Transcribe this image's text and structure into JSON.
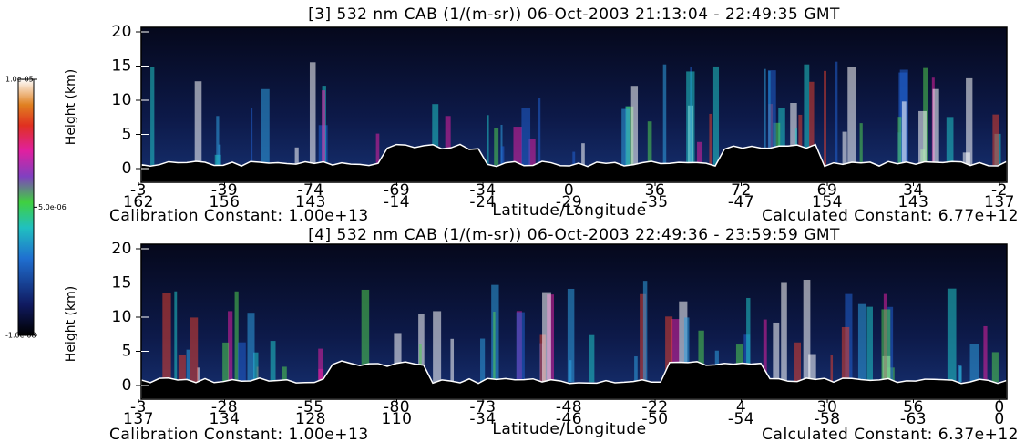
{
  "colorbar": {
    "ticks": [
      {
        "value": 1e-05,
        "label": "1.0e-05"
      },
      {
        "value": 5e-06,
        "label": "5.0e-06"
      },
      {
        "value": -1e-08,
        "label": "-1.0e-08"
      }
    ],
    "lim": [
      -1e-08,
      1e-05
    ]
  },
  "panels": [
    {
      "title": "[3]  532 nm CAB (1/(m-sr)) 06-Oct-2003 21:13:04 - 22:49:35 GMT",
      "ylabel": "Height (km)",
      "xlabel": "Latitude/Longitude",
      "ylim": [
        -2,
        20
      ],
      "yticks": [
        0,
        5,
        10,
        15,
        20
      ],
      "xticks": [
        {
          "lat": "-3",
          "lon": "162"
        },
        {
          "lat": "-39",
          "lon": "156"
        },
        {
          "lat": "-74",
          "lon": "143"
        },
        {
          "lat": "-69",
          "lon": "-14"
        },
        {
          "lat": "-34",
          "lon": "-24"
        },
        {
          "lat": "0",
          "lon": "-29"
        },
        {
          "lat": "36",
          "lon": "-35"
        },
        {
          "lat": "72",
          "lon": "-47"
        },
        {
          "lat": "69",
          "lon": "154"
        },
        {
          "lat": "34",
          "lon": "143"
        },
        {
          "lat": "-2",
          "lon": "137"
        }
      ],
      "calibration": "Calibration Constant: 1.00e+13",
      "calculated": "Calculated Constant: 6.77e+12"
    },
    {
      "title": "[4]  532 nm CAB (1/(m-sr)) 06-Oct-2003 22:49:36 - 23:59:59 GMT",
      "ylabel": "Height (km)",
      "xlabel": "Latitude/Longitude",
      "ylim": [
        -2,
        20
      ],
      "yticks": [
        0,
        5,
        10,
        15,
        20
      ],
      "xticks": [
        {
          "lat": "-3",
          "lon": "137"
        },
        {
          "lat": "-28",
          "lon": "134"
        },
        {
          "lat": "-55",
          "lon": "128"
        },
        {
          "lat": "-80",
          "lon": "110"
        },
        {
          "lat": "-73",
          "lon": "-34"
        },
        {
          "lat": "-48",
          "lon": "-46"
        },
        {
          "lat": "-22",
          "lon": "-50"
        },
        {
          "lat": "4",
          "lon": "-54"
        },
        {
          "lat": "30",
          "lon": "-58"
        },
        {
          "lat": "56",
          "lon": "-63"
        },
        {
          "lat": "0",
          "lon": "0"
        }
      ],
      "calibration": "Calibration Constant: 1.00e+13",
      "calculated": "Calculated Constant: 6.37e+12"
    }
  ]
}
